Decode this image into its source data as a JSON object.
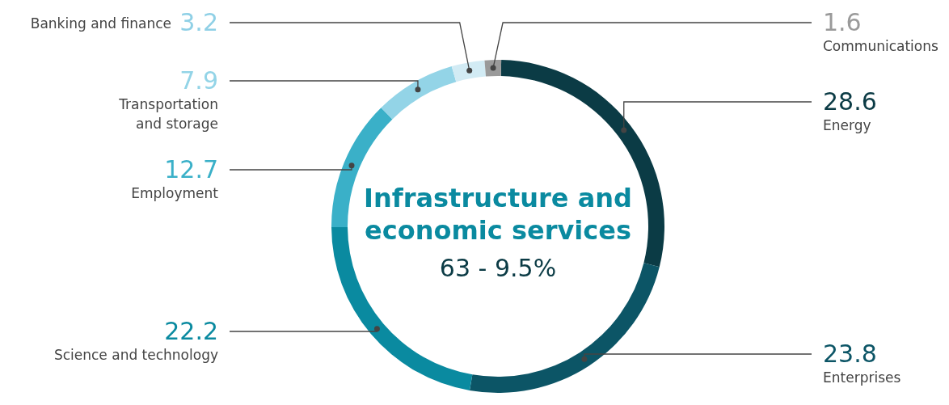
{
  "chart_data": {
    "type": "donut",
    "title": "Infrastructure and economic services",
    "subtitle": "63 - 9.5%",
    "categories": [
      "Energy",
      "Enterprises",
      "Science and technology",
      "Employment",
      "Transportation and storage",
      "Banking and finance",
      "Communications"
    ],
    "values": [
      28.6,
      23.8,
      22.2,
      12.7,
      7.9,
      3.2,
      1.6
    ],
    "colors": [
      "#0b3b45",
      "#0c5566",
      "#0a8aa0",
      "#3ab0c8",
      "#93d4e7",
      "#d2ebf4",
      "#9a9a9a"
    ],
    "data_labels": true
  }
}
